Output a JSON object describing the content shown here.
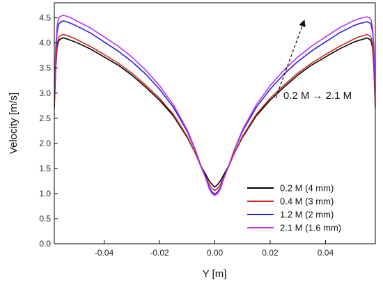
{
  "chart_data": {
    "type": "line",
    "title": "",
    "xlabel": "Y [m]",
    "ylabel": "Velocity [m/s]",
    "xlim": [
      -0.058,
      0.058
    ],
    "ylim": [
      0.0,
      4.8
    ],
    "xticks": [
      -0.04,
      -0.02,
      0.0,
      0.02,
      0.04
    ],
    "xtick_labels": [
      "-0.04",
      "-0.02",
      "0.00",
      "0.02",
      "0.04"
    ],
    "yticks": [
      0.0,
      0.5,
      1.0,
      1.5,
      2.0,
      2.5,
      3.0,
      3.5,
      4.0,
      4.5
    ],
    "ytick_labels": [
      "0.0",
      "0.5",
      "1.0",
      "1.5",
      "2.0",
      "2.5",
      "3.0",
      "3.5",
      "4.0",
      "4.5"
    ],
    "grid": false,
    "legend_position": "bottom-right",
    "annotation": {
      "text": "0.2 M → 2.1 M",
      "arrow_from": [
        0.022,
        2.9
      ],
      "arrow_to": [
        0.032,
        4.4
      ]
    },
    "series": [
      {
        "name": "0.2 M (4 mm)",
        "color": "#000000",
        "x": [
          -0.058,
          -0.0575,
          -0.057,
          -0.0565,
          -0.056,
          -0.055,
          -0.054,
          -0.052,
          -0.05,
          -0.045,
          -0.04,
          -0.035,
          -0.03,
          -0.025,
          -0.02,
          -0.015,
          -0.01,
          -0.007,
          -0.005,
          -0.003,
          -0.002,
          -0.001,
          0.0,
          0.001,
          0.002,
          0.003,
          0.005,
          0.007,
          0.01,
          0.015,
          0.02,
          0.025,
          0.03,
          0.035,
          0.04,
          0.045,
          0.05,
          0.052,
          0.054,
          0.055,
          0.056,
          0.0565,
          0.057,
          0.0575,
          0.058
        ],
        "y": [
          2.7,
          3.5,
          3.9,
          4.03,
          4.07,
          4.1,
          4.09,
          4.05,
          4.01,
          3.88,
          3.72,
          3.56,
          3.36,
          3.12,
          2.86,
          2.55,
          2.12,
          1.8,
          1.55,
          1.35,
          1.25,
          1.18,
          1.13,
          1.18,
          1.25,
          1.35,
          1.55,
          1.8,
          2.12,
          2.55,
          2.86,
          3.12,
          3.36,
          3.56,
          3.72,
          3.88,
          4.01,
          4.05,
          4.08,
          4.1,
          4.07,
          4.03,
          3.9,
          3.5,
          2.7
        ]
      },
      {
        "name": "0.4 M (3 mm)",
        "color": "#cc2a1a",
        "x": [
          -0.058,
          -0.0575,
          -0.057,
          -0.0565,
          -0.056,
          -0.055,
          -0.054,
          -0.052,
          -0.05,
          -0.045,
          -0.04,
          -0.035,
          -0.03,
          -0.025,
          -0.02,
          -0.015,
          -0.01,
          -0.007,
          -0.005,
          -0.003,
          -0.002,
          -0.001,
          0.0,
          0.001,
          0.002,
          0.003,
          0.005,
          0.007,
          0.01,
          0.015,
          0.02,
          0.025,
          0.03,
          0.035,
          0.04,
          0.045,
          0.05,
          0.052,
          0.054,
          0.055,
          0.056,
          0.0565,
          0.057,
          0.0575,
          0.058
        ],
        "y": [
          2.8,
          3.55,
          3.95,
          4.1,
          4.14,
          4.17,
          4.16,
          4.12,
          4.07,
          3.93,
          3.77,
          3.6,
          3.4,
          3.16,
          2.9,
          2.58,
          2.14,
          1.8,
          1.53,
          1.3,
          1.18,
          1.1,
          1.06,
          1.1,
          1.18,
          1.3,
          1.53,
          1.8,
          2.14,
          2.58,
          2.9,
          3.16,
          3.4,
          3.6,
          3.77,
          3.93,
          4.07,
          4.12,
          4.15,
          4.17,
          4.14,
          4.1,
          3.95,
          3.55,
          2.8
        ]
      },
      {
        "name": "1.2 M (2 mm)",
        "color": "#2222dd",
        "x": [
          -0.058,
          -0.0575,
          -0.057,
          -0.0565,
          -0.056,
          -0.055,
          -0.054,
          -0.052,
          -0.05,
          -0.045,
          -0.04,
          -0.035,
          -0.03,
          -0.025,
          -0.02,
          -0.015,
          -0.01,
          -0.007,
          -0.005,
          -0.003,
          -0.002,
          -0.001,
          0.0,
          0.001,
          0.002,
          0.003,
          0.005,
          0.007,
          0.01,
          0.015,
          0.02,
          0.025,
          0.03,
          0.035,
          0.04,
          0.045,
          0.05,
          0.052,
          0.054,
          0.055,
          0.056,
          0.0565,
          0.057,
          0.0575,
          0.058
        ],
        "y": [
          3.0,
          3.8,
          4.22,
          4.36,
          4.4,
          4.44,
          4.43,
          4.39,
          4.34,
          4.2,
          4.02,
          3.84,
          3.63,
          3.38,
          3.08,
          2.72,
          2.24,
          1.86,
          1.55,
          1.28,
          1.12,
          1.03,
          0.99,
          1.03,
          1.12,
          1.28,
          1.55,
          1.86,
          2.24,
          2.72,
          3.08,
          3.38,
          3.63,
          3.84,
          4.02,
          4.2,
          4.34,
          4.38,
          4.41,
          4.42,
          4.4,
          4.36,
          4.22,
          3.8,
          3.0
        ]
      },
      {
        "name": "2.1 M (1.6 mm)",
        "color": "#bb33ee",
        "x": [
          -0.058,
          -0.0575,
          -0.057,
          -0.0565,
          -0.056,
          -0.055,
          -0.054,
          -0.052,
          -0.05,
          -0.045,
          -0.04,
          -0.035,
          -0.03,
          -0.025,
          -0.02,
          -0.015,
          -0.01,
          -0.007,
          -0.005,
          -0.003,
          -0.002,
          -0.001,
          0.0,
          0.001,
          0.002,
          0.003,
          0.005,
          0.007,
          0.01,
          0.015,
          0.02,
          0.025,
          0.03,
          0.035,
          0.04,
          0.045,
          0.05,
          0.052,
          0.054,
          0.055,
          0.056,
          0.0565,
          0.057,
          0.0575,
          0.058
        ],
        "y": [
          3.1,
          3.9,
          4.34,
          4.48,
          4.52,
          4.55,
          4.54,
          4.5,
          4.44,
          4.3,
          4.12,
          3.94,
          3.72,
          3.46,
          3.15,
          2.77,
          2.27,
          1.87,
          1.55,
          1.26,
          1.09,
          1.0,
          0.96,
          1.0,
          1.09,
          1.26,
          1.55,
          1.87,
          2.27,
          2.77,
          3.15,
          3.46,
          3.72,
          3.94,
          4.12,
          4.3,
          4.44,
          4.48,
          4.51,
          4.52,
          4.5,
          4.45,
          4.3,
          3.9,
          3.1
        ]
      }
    ]
  }
}
